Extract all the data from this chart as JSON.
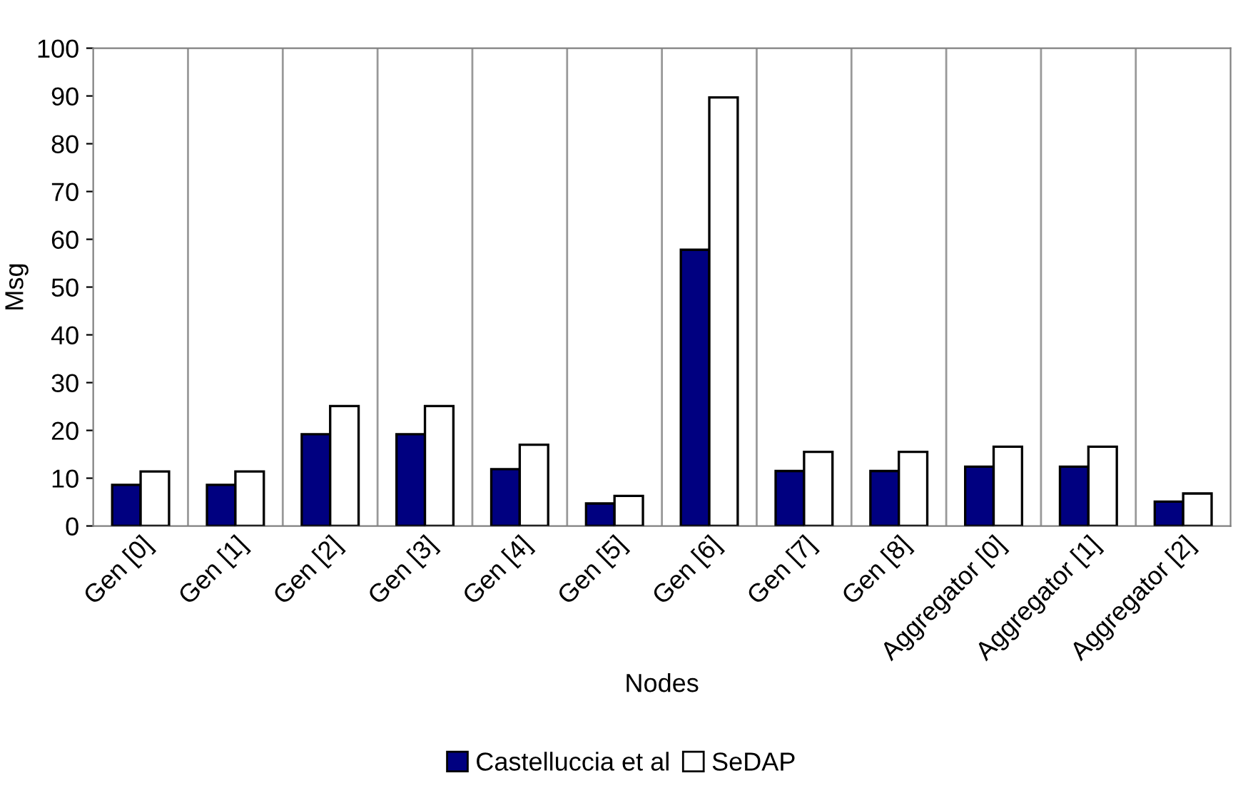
{
  "chart_data": {
    "type": "bar",
    "xlabel": "Nodes",
    "ylabel": "Msg",
    "categories": [
      "Gen [0]",
      "Gen [1]",
      "Gen [2]",
      "Gen [3]",
      "Gen [4]",
      "Gen [5]",
      "Gen [6]",
      "Gen [7]",
      "Gen [8]",
      "Aggregator [0]",
      "Aggregator [1]",
      "Aggregator [2]"
    ],
    "series": [
      {
        "name": "Castelluccia et al",
        "color": "#000080",
        "values": [
          8.6,
          8.6,
          19.2,
          19.2,
          11.9,
          4.7,
          57.8,
          11.5,
          11.5,
          12.4,
          12.4,
          5.1
        ]
      },
      {
        "name": "SeDAP",
        "color": "#ffffff",
        "values": [
          11.4,
          11.4,
          25.1,
          25.1,
          17.0,
          6.3,
          89.7,
          15.5,
          15.5,
          16.6,
          16.6,
          6.8
        ]
      }
    ],
    "ylim": [
      0,
      100
    ],
    "yticks": [
      0,
      10,
      20,
      30,
      40,
      50,
      60,
      70,
      80,
      90,
      100
    ],
    "grid": "x",
    "legend": "bottom"
  }
}
